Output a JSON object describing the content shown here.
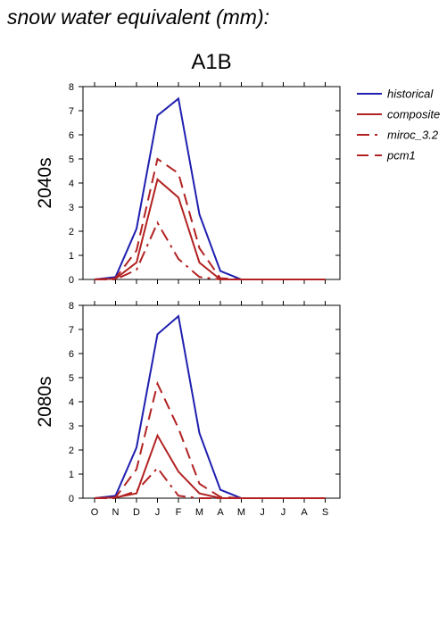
{
  "title": "snow water equivalent (mm):",
  "scenario": "A1B",
  "colors": {
    "historical": "#1f1fb0",
    "model": "#b22222"
  },
  "legend": [
    {
      "name": "historical",
      "color": "#1f1fb0",
      "dash": "solid"
    },
    {
      "name": "composite",
      "color": "#b22222",
      "dash": "solid"
    },
    {
      "name": "miroc_3.2",
      "color": "#b22222",
      "dash": "dashdot"
    },
    {
      "name": "pcm1",
      "color": "#b22222",
      "dash": "dashed"
    }
  ],
  "chart_data": [
    {
      "type": "line",
      "panel_label": "2040s",
      "categories": [
        "O",
        "N",
        "D",
        "J",
        "F",
        "M",
        "A",
        "M",
        "J",
        "J",
        "A",
        "S"
      ],
      "ylim": [
        0,
        8
      ],
      "yticks": [
        "0",
        "1",
        "2",
        "3",
        "4",
        "5",
        "6",
        "7",
        "8"
      ],
      "series": [
        {
          "name": "historical",
          "values": [
            0,
            0.1,
            2.1,
            6.8,
            7.5,
            2.7,
            0.35,
            0,
            0,
            0,
            0,
            0
          ]
        },
        {
          "name": "composite",
          "values": [
            0,
            0.03,
            0.7,
            4.15,
            3.4,
            0.7,
            0,
            0,
            0,
            0,
            0,
            0
          ]
        },
        {
          "name": "miroc_3.2",
          "values": [
            0,
            0,
            0.4,
            2.35,
            0.85,
            0.1,
            0,
            0,
            0,
            0,
            0,
            0
          ]
        },
        {
          "name": "pcm1",
          "values": [
            0,
            0.05,
            1.2,
            5.0,
            4.4,
            1.3,
            0.05,
            0,
            0,
            0,
            0,
            0
          ]
        }
      ]
    },
    {
      "type": "line",
      "panel_label": "2080s",
      "categories": [
        "O",
        "N",
        "D",
        "J",
        "F",
        "M",
        "A",
        "M",
        "J",
        "J",
        "A",
        "S"
      ],
      "ylim": [
        0,
        8
      ],
      "yticks": [
        "0",
        "1",
        "2",
        "3",
        "4",
        "5",
        "6",
        "7",
        "8"
      ],
      "series": [
        {
          "name": "historical",
          "values": [
            0,
            0.1,
            2.1,
            6.8,
            7.55,
            2.7,
            0.35,
            0,
            0,
            0,
            0,
            0
          ]
        },
        {
          "name": "composite",
          "values": [
            0,
            0.03,
            0.2,
            2.6,
            1.1,
            0.2,
            0,
            0,
            0,
            0,
            0,
            0
          ]
        },
        {
          "name": "miroc_3.2",
          "values": [
            0,
            0,
            0.3,
            1.25,
            0.1,
            0,
            0,
            0,
            0,
            0,
            0,
            0
          ]
        },
        {
          "name": "pcm1",
          "values": [
            0,
            0.03,
            1.2,
            4.75,
            2.9,
            0.6,
            0.05,
            0,
            0,
            0,
            0,
            0
          ]
        }
      ]
    }
  ]
}
